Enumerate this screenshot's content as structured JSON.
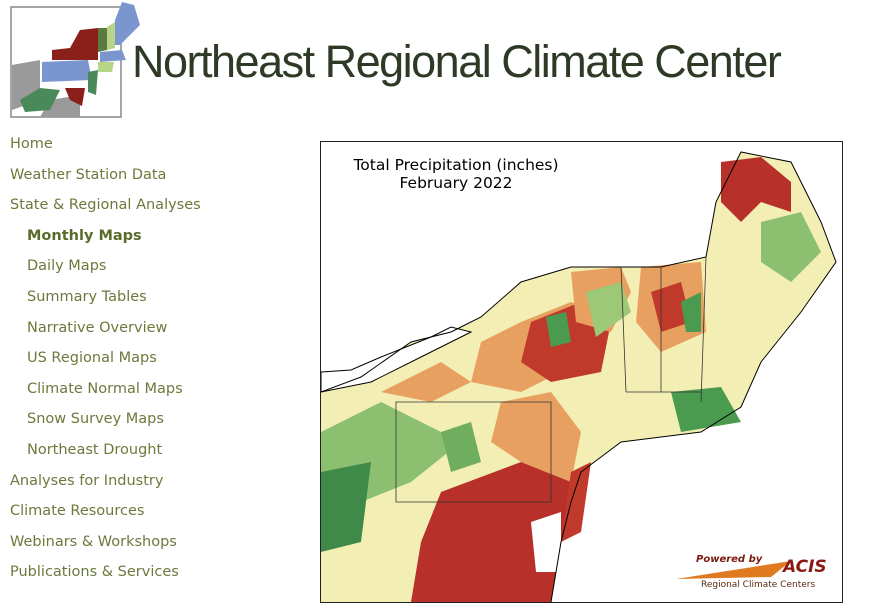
{
  "header": {
    "title": "Northeast Regional Climate Center"
  },
  "nav": [
    {
      "label": "Home",
      "sub": false
    },
    {
      "label": "Weather Station Data",
      "sub": false
    },
    {
      "label": "State & Regional Analyses",
      "sub": false
    },
    {
      "label": "Monthly Maps",
      "sub": true,
      "active": true
    },
    {
      "label": "Daily Maps",
      "sub": true
    },
    {
      "label": "Summary Tables",
      "sub": true
    },
    {
      "label": "Narrative Overview",
      "sub": true
    },
    {
      "label": "US Regional Maps",
      "sub": true
    },
    {
      "label": "Climate Normal Maps",
      "sub": true
    },
    {
      "label": "Snow Survey Maps",
      "sub": true
    },
    {
      "label": "Northeast Drought",
      "sub": true
    },
    {
      "label": "Analyses for Industry",
      "sub": false
    },
    {
      "label": "Climate Resources",
      "sub": false
    },
    {
      "label": "Webinars & Workshops",
      "sub": false
    },
    {
      "label": "Publications & Services",
      "sub": false
    }
  ],
  "map": {
    "title_line1": "Total Precipitation (inches)",
    "title_line2": "February 2022",
    "colors": {
      "dry_red": "#b22222",
      "orange": "#e8a060",
      "yellow": "#f5f0b0",
      "light_green": "#a8d080",
      "green": "#4a9a50"
    }
  },
  "acis_logo": {
    "powered": "Powered by",
    "brand": "ACIS",
    "sub": "Regional Climate Centers"
  }
}
